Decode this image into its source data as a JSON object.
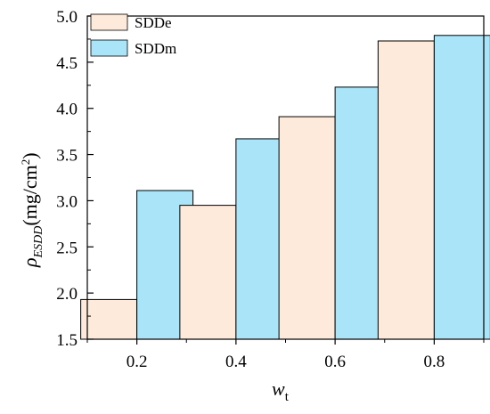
{
  "chart_data": {
    "type": "bar",
    "categories": [
      "0.2",
      "0.4",
      "0.6",
      "0.8"
    ],
    "series": [
      {
        "name": "SDDe",
        "color": "#fdeada",
        "values": [
          1.93,
          2.95,
          3.91,
          4.73
        ]
      },
      {
        "name": "SDDm",
        "color": "#a9e4f8",
        "values": [
          3.11,
          3.67,
          4.23,
          4.79
        ]
      }
    ],
    "ylim": [
      1.5,
      5.0
    ],
    "yticks": [
      "1.5",
      "2.0",
      "2.5",
      "3.0",
      "3.5",
      "4.0",
      "4.5",
      "5.0"
    ],
    "xlabel": {
      "main": "w",
      "sub": "t"
    },
    "ylabel": {
      "rho": "ρ",
      "sub": "ESDD",
      "unit": "(mg/cm",
      "sup": "2",
      "close": ")"
    },
    "legend": {
      "position": "top-left"
    },
    "grid": false
  }
}
